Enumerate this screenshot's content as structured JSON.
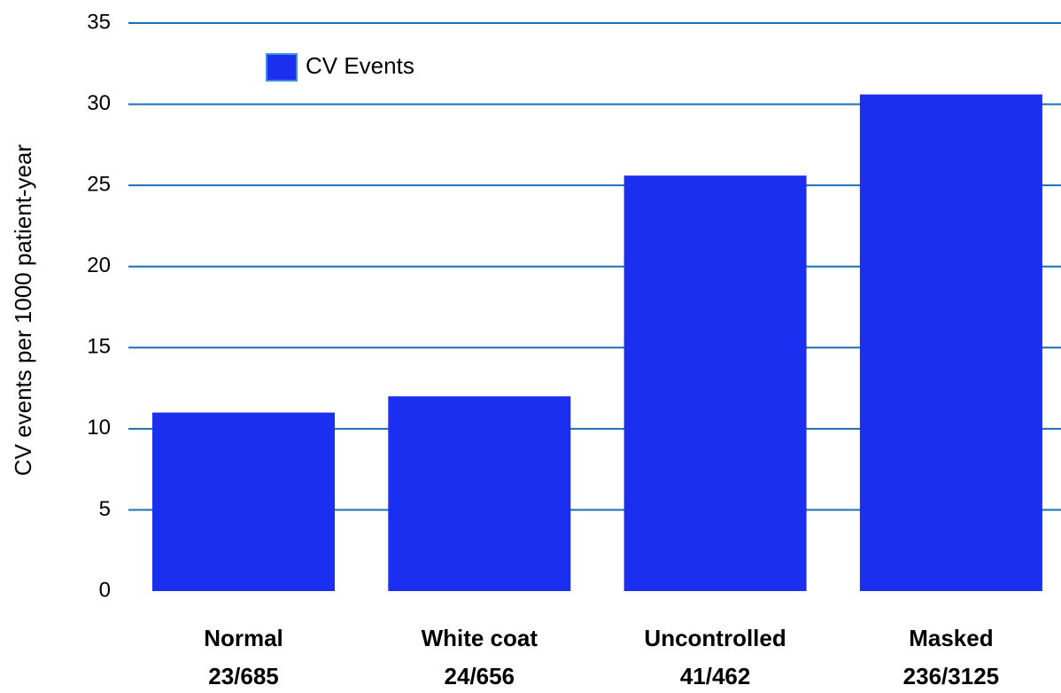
{
  "chart_data": {
    "type": "bar",
    "y_label": "CV events per 1000 patient-year",
    "categories": [
      [
        "Normal",
        "23/685"
      ],
      [
        "White coat",
        "24/656"
      ],
      [
        "Uncontrolled",
        "41/462"
      ],
      [
        "Masked",
        "236/3125"
      ]
    ],
    "series": [
      {
        "name": "CV Events",
        "color": "#1a2ff0",
        "values": [
          11,
          12,
          25.6,
          30.6
        ]
      }
    ],
    "ylim": [
      0,
      35
    ],
    "yticks": [
      0,
      5,
      10,
      15,
      20,
      25,
      30,
      35
    ],
    "grid": true,
    "grid_color": "#1a6fb5",
    "legend": "top-left"
  }
}
